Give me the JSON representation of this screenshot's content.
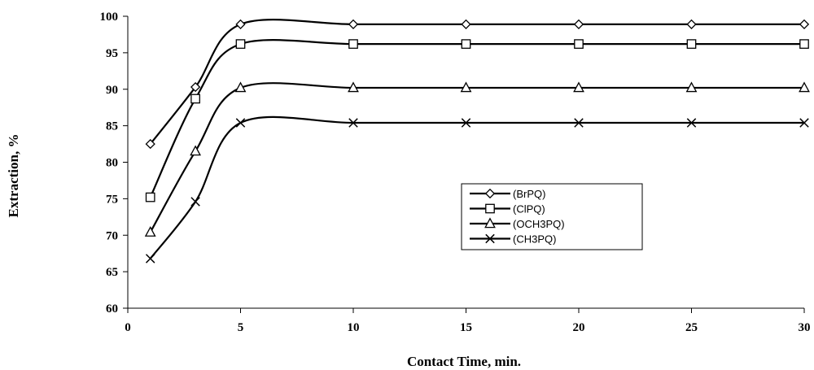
{
  "chart_data": {
    "type": "line",
    "title": "",
    "xlabel": "Contact Time,  min.",
    "ylabel": "Extraction, %",
    "xlim": [
      0,
      30
    ],
    "ylim": [
      60,
      100
    ],
    "xticks": [
      0,
      5,
      10,
      15,
      20,
      25,
      30
    ],
    "yticks": [
      60,
      65,
      70,
      75,
      80,
      85,
      90,
      95,
      100
    ],
    "grid": false,
    "legend_position": "center-right",
    "series": [
      {
        "name": "(BrPQ)",
        "marker": "diamond",
        "x": [
          1,
          3,
          5,
          10,
          15,
          20,
          25,
          30
        ],
        "y": [
          82.5,
          90.3,
          98.9,
          98.9,
          98.9,
          98.9,
          98.9,
          98.9
        ]
      },
      {
        "name": "(ClPQ)",
        "marker": "square",
        "x": [
          1,
          3,
          5,
          10,
          15,
          20,
          25,
          30
        ],
        "y": [
          75.2,
          88.7,
          96.2,
          96.2,
          96.2,
          96.2,
          96.2,
          96.2
        ]
      },
      {
        "name": "(OCH3PQ)",
        "marker": "triangle",
        "x": [
          1,
          3,
          5,
          10,
          15,
          20,
          25,
          30
        ],
        "y": [
          70.4,
          81.5,
          90.2,
          90.2,
          90.2,
          90.2,
          90.2,
          90.2
        ]
      },
      {
        "name": "(CH3PQ)",
        "marker": "x",
        "x": [
          1,
          3,
          5,
          10,
          15,
          20,
          25,
          30
        ],
        "y": [
          66.8,
          74.6,
          85.4,
          85.4,
          85.4,
          85.4,
          85.4,
          85.4
        ]
      }
    ],
    "colors": {
      "line": "#000000",
      "marker_fill": "#ffffff"
    }
  }
}
